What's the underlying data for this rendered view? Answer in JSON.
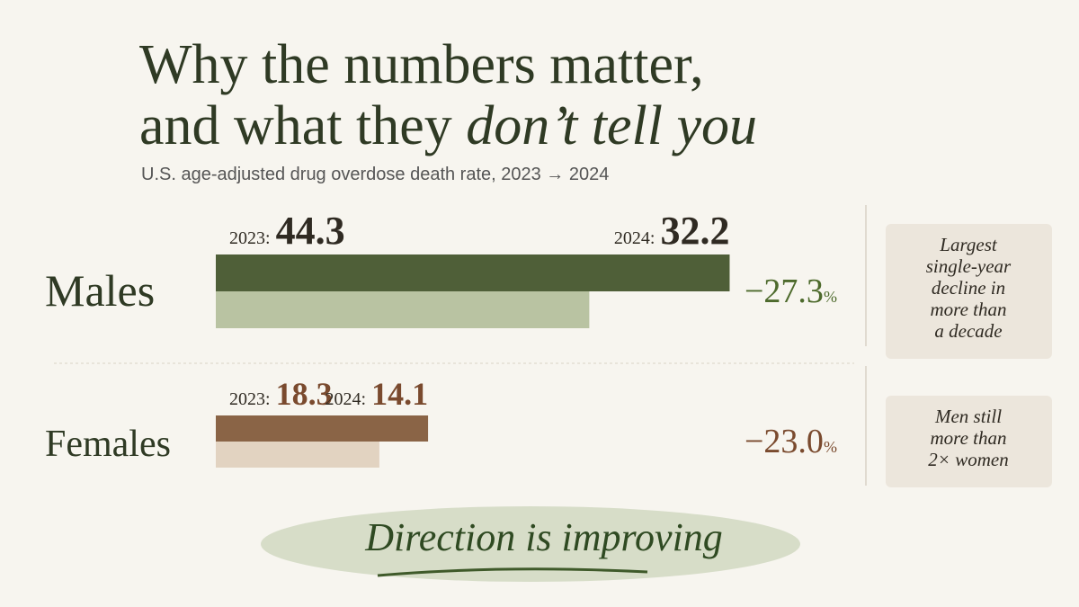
{
  "header": {
    "title_line1": "Why the numbers matter,",
    "title_line2_plain": "and what they ",
    "title_line2_italic": "don’t tell you",
    "subtitle": "U.S. age-adjusted drug overdose death rate, 2023 → 2024"
  },
  "rows": [
    {
      "label": "Males",
      "year_a": "2023:",
      "value_a": 44.3,
      "year_b": "2024:",
      "value_b": 32.2,
      "change": "−27.3",
      "change_unit": "%",
      "dark": "#4f5f38",
      "light": "#b9c3a2",
      "accent": "#4d6a2c",
      "note": [
        "Largest",
        "single-year",
        "decline in",
        "more than",
        "a decade"
      ]
    },
    {
      "label": "Females",
      "year_a": "2023:",
      "value_a": 18.3,
      "year_b": "2024:",
      "value_b": 14.1,
      "change": "−23.0",
      "change_unit": "%",
      "dark": "#8a6446",
      "light": "#e2d3c1",
      "accent": "#7a4a2e",
      "note": [
        "Men still",
        "more than",
        "2× women"
      ]
    }
  ],
  "banner": "Direction is improving"
}
